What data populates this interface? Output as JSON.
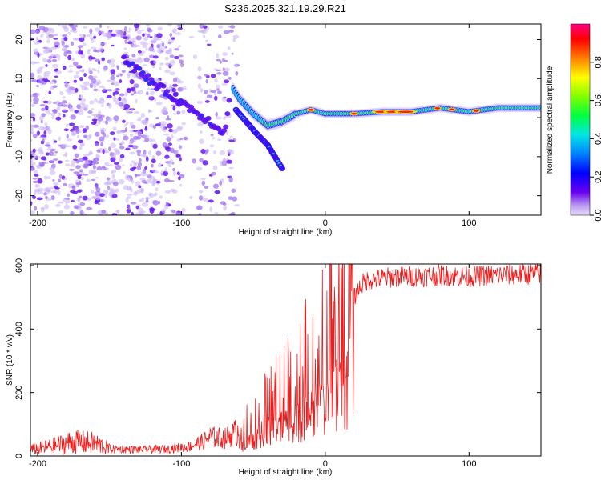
{
  "title": "S236.2025.321.19.29.R21",
  "chart_data": [
    {
      "type": "heatmap",
      "title": "S236.2025.321.19.29.R21",
      "xlabel": "Height of straight line (km)",
      "ylabel": "Frequency (Hz)",
      "xlim": [
        -205,
        150
      ],
      "ylim": [
        -25,
        24
      ],
      "xticks": [
        -200,
        -100,
        0,
        100
      ],
      "yticks": [
        -20,
        -10,
        0,
        10,
        20
      ],
      "colorbar": {
        "label": "Normalized spectral amplitude",
        "range": [
          0,
          1
        ],
        "ticks": [
          0.0,
          0.2,
          0.4,
          0.6,
          0.8
        ]
      },
      "ridge": {
        "x": [
          -140,
          -120,
          -100,
          -80,
          -70,
          -65,
          -60,
          -50,
          -40,
          -30,
          -20,
          -10,
          0,
          20,
          40,
          60,
          80,
          100,
          120,
          150
        ],
        "y": [
          15,
          9,
          4,
          -1,
          -4,
          8,
          5,
          1,
          -2,
          -1,
          1,
          2,
          1,
          1,
          1.5,
          1.5,
          2.5,
          1.5,
          2.5,
          2.5
        ]
      },
      "secondary_branch": {
        "x": [
          -62,
          -55,
          -48,
          -40,
          -35,
          -30
        ],
        "y": [
          2,
          -1,
          -4,
          -7,
          -10,
          -13
        ]
      }
    },
    {
      "type": "line",
      "xlabel": "Height of straight line (km)",
      "ylabel": "SNR (10 * v/v)",
      "xlim": [
        -205,
        150
      ],
      "ylim": [
        0,
        605
      ],
      "xticks": [
        -200,
        -100,
        0,
        100
      ],
      "yticks": [
        0,
        200,
        400,
        600
      ],
      "color": "#ee1c1c",
      "series": [
        {
          "name": "SNR",
          "x": [
            -205,
            -190,
            -175,
            -160,
            -150,
            -130,
            -110,
            -95,
            -85,
            -80,
            -70,
            -60,
            -50,
            -40,
            -30,
            -25,
            -20,
            -15,
            -10,
            -5,
            0,
            5,
            10,
            15,
            20,
            25,
            30,
            40,
            50,
            60,
            80,
            100,
            120,
            150
          ],
          "values": [
            20,
            30,
            45,
            40,
            22,
            20,
            22,
            30,
            45,
            60,
            55,
            80,
            110,
            150,
            200,
            230,
            240,
            260,
            290,
            320,
            370,
            420,
            450,
            470,
            500,
            540,
            555,
            560,
            565,
            565,
            570,
            565,
            570,
            575
          ]
        }
      ]
    }
  ]
}
